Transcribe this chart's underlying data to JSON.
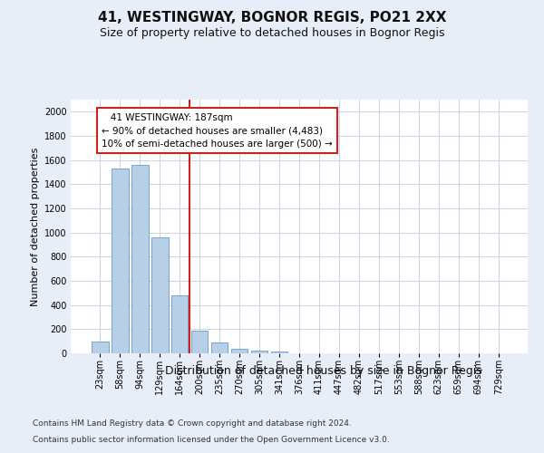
{
  "title": "41, WESTINGWAY, BOGNOR REGIS, PO21 2XX",
  "subtitle": "Size of property relative to detached houses in Bognor Regis",
  "xlabel": "Distribution of detached houses by size in Bognor Regis",
  "ylabel": "Number of detached properties",
  "footer_line1": "Contains HM Land Registry data © Crown copyright and database right 2024.",
  "footer_line2": "Contains public sector information licensed under the Open Government Licence v3.0.",
  "categories": [
    "23sqm",
    "58sqm",
    "94sqm",
    "129sqm",
    "164sqm",
    "200sqm",
    "235sqm",
    "270sqm",
    "305sqm",
    "341sqm",
    "376sqm",
    "411sqm",
    "447sqm",
    "482sqm",
    "517sqm",
    "553sqm",
    "588sqm",
    "623sqm",
    "659sqm",
    "694sqm",
    "729sqm"
  ],
  "values": [
    100,
    1530,
    1560,
    960,
    480,
    190,
    90,
    35,
    20,
    15,
    0,
    0,
    0,
    0,
    0,
    0,
    0,
    0,
    0,
    0,
    0
  ],
  "bar_color": "#b8cfe8",
  "bar_edge_color": "#6699cc",
  "ylim": [
    0,
    2100
  ],
  "yticks": [
    0,
    200,
    400,
    600,
    800,
    1000,
    1200,
    1400,
    1600,
    1800,
    2000
  ],
  "vline_x": 4.5,
  "vline_color": "#cc2222",
  "annotation_line1": "   41 WESTINGWAY: 187sqm",
  "annotation_line2": "← 90% of detached houses are smaller (4,483)",
  "annotation_line3": "10% of semi-detached houses are larger (500) →",
  "annotation_box_edgecolor": "#cc2222",
  "bg_color": "#e8eef8",
  "plot_bg": "#ffffff",
  "grid_color": "#c8d4e8",
  "title_fontsize": 11,
  "subtitle_fontsize": 9,
  "ylabel_fontsize": 8,
  "xlabel_fontsize": 9,
  "tick_fontsize": 7,
  "footer_fontsize": 6.5
}
